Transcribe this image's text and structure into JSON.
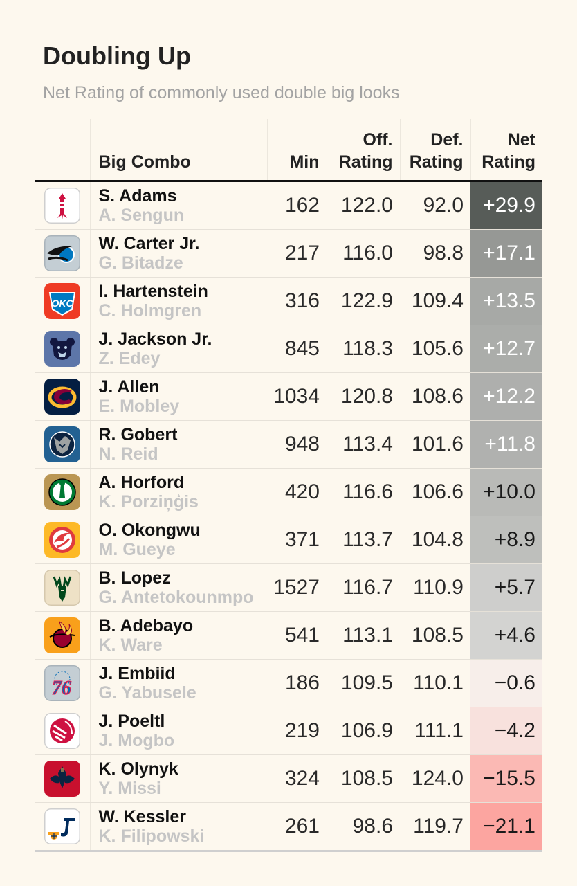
{
  "title": "Doubling Up",
  "subtitle": "Net Rating of commonly used double big looks",
  "headers": {
    "combo": "Big Combo",
    "min": "Min",
    "off_1": "Off.",
    "off_2": "Rating",
    "def_1": "Def.",
    "def_2": "Rating",
    "net_1": "Net",
    "net_2": "Rating"
  },
  "chart_data": {
    "type": "table",
    "columns": [
      "Big Combo",
      "Min",
      "Off. Rating",
      "Def. Rating",
      "Net Rating"
    ],
    "rows": [
      {
        "team_icon": "rockets-icon",
        "player1": "S. Adams",
        "player2": "A. Sengun",
        "min": "162",
        "off": "122.0",
        "def": "92.0",
        "net": "+29.9",
        "net_value": 29.9
      },
      {
        "team_icon": "magic-icon",
        "player1": "W. Carter Jr.",
        "player2": "G. Bitadze",
        "min": "217",
        "off": "116.0",
        "def": "98.8",
        "net": "+17.1",
        "net_value": 17.1
      },
      {
        "team_icon": "thunder-icon",
        "player1": "I. Hartenstein",
        "player2": "C. Holmgren",
        "min": "316",
        "off": "122.9",
        "def": "109.4",
        "net": "+13.5",
        "net_value": 13.5
      },
      {
        "team_icon": "grizzlies-icon",
        "player1": "J. Jackson Jr.",
        "player2": "Z. Edey",
        "min": "845",
        "off": "118.3",
        "def": "105.6",
        "net": "+12.7",
        "net_value": 12.7
      },
      {
        "team_icon": "cavaliers-icon",
        "player1": "J. Allen",
        "player2": "E. Mobley",
        "min": "1034",
        "off": "120.8",
        "def": "108.6",
        "net": "+12.2",
        "net_value": 12.2
      },
      {
        "team_icon": "timberwolves-icon",
        "player1": "R. Gobert",
        "player2": "N. Reid",
        "min": "948",
        "off": "113.4",
        "def": "101.6",
        "net": "+11.8",
        "net_value": 11.8
      },
      {
        "team_icon": "celtics-icon",
        "player1": "A. Horford",
        "player2": "K. Porziņģis",
        "min": "420",
        "off": "116.6",
        "def": "106.6",
        "net": "+10.0",
        "net_value": 10.0
      },
      {
        "team_icon": "hawks-icon",
        "player1": "O. Okongwu",
        "player2": "M. Gueye",
        "min": "371",
        "off": "113.7",
        "def": "104.8",
        "net": "+8.9",
        "net_value": 8.9
      },
      {
        "team_icon": "bucks-icon",
        "player1": "B. Lopez",
        "player2": "G. Antetokounmpo",
        "min": "1527",
        "off": "116.7",
        "def": "110.9",
        "net": "+5.7",
        "net_value": 5.7
      },
      {
        "team_icon": "heat-icon",
        "player1": "B. Adebayo",
        "player2": "K. Ware",
        "min": "541",
        "off": "113.1",
        "def": "108.5",
        "net": "+4.6",
        "net_value": 4.6
      },
      {
        "team_icon": "76ers-icon",
        "player1": "J. Embiid",
        "player2": "G. Yabusele",
        "min": "186",
        "off": "109.5",
        "def": "110.1",
        "net": "−0.6",
        "net_value": -0.6
      },
      {
        "team_icon": "raptors-icon",
        "player1": "J. Poeltl",
        "player2": "J. Mogbo",
        "min": "219",
        "off": "106.9",
        "def": "111.1",
        "net": "−4.2",
        "net_value": -4.2
      },
      {
        "team_icon": "pelicans-icon",
        "player1": "K. Olynyk",
        "player2": "Y. Missi",
        "min": "324",
        "off": "108.5",
        "def": "124.0",
        "net": "−15.5",
        "net_value": -15.5
      },
      {
        "team_icon": "jazz-icon",
        "player1": "W. Kessler",
        "player2": "K. Filipowski",
        "min": "261",
        "off": "98.6",
        "def": "119.7",
        "net": "−21.1",
        "net_value": -21.1
      }
    ],
    "color_scale": {
      "positive_max": "#575c58",
      "positive_min": "#d3d3d1",
      "negative_max": "#fca5a0",
      "neutral": "#f7f0ec"
    }
  },
  "team_colors": {
    "rockets-icon": {
      "bg": "#ffffff",
      "fg": "#ce1141",
      "border": "#cfcfcf"
    },
    "magic-icon": {
      "bg": "#c4ced4",
      "fg": "#111111",
      "accent": "#0077c0",
      "border": "#a9b3ba"
    },
    "thunder-icon": {
      "bg": "#ef3b24",
      "fg": "#ffffff",
      "accent": "#007ac1"
    },
    "grizzlies-icon": {
      "bg": "#5d76a9",
      "fg": "#12173f",
      "accent": "#bed4e9"
    },
    "cavaliers-icon": {
      "bg": "#041e42",
      "fg": "#860038",
      "accent": "#fdbb30"
    },
    "timberwolves-icon": {
      "bg": "#236192",
      "fg": "#0c2340",
      "accent": "#9ea2a2"
    },
    "celtics-icon": {
      "bg": "#ba9653",
      "fg": "#007a33",
      "accent": "#ffffff"
    },
    "hawks-icon": {
      "bg": "#fdb927",
      "fg": "#e03a3e",
      "accent": "#ffffff"
    },
    "bucks-icon": {
      "bg": "#eee1c6",
      "fg": "#00471b",
      "accent": "#0077c0",
      "border": "#d5c8ad"
    },
    "heat-icon": {
      "bg": "#f9a01b",
      "fg": "#98002e",
      "accent": "#000000"
    },
    "76ers-icon": {
      "bg": "#c4ced4",
      "fg": "#006bb6",
      "accent": "#ed174c",
      "border": "#a9b3ba"
    },
    "raptors-icon": {
      "bg": "#ffffff",
      "fg": "#ce1141",
      "border": "#cfcfcf"
    },
    "pelicans-icon": {
      "bg": "#c8102e",
      "fg": "#0c2340",
      "accent": "#85714d"
    },
    "jazz-icon": {
      "bg": "#ffffff",
      "fg": "#002b5c",
      "accent": "#f9a01b",
      "border": "#cfcfcf"
    }
  }
}
